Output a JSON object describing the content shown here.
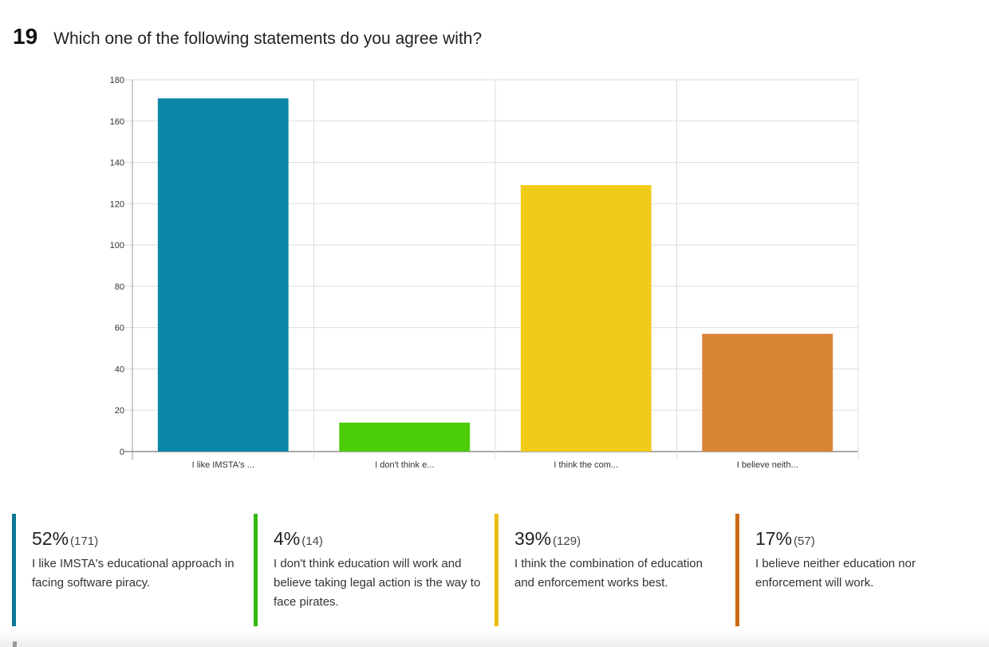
{
  "question": {
    "number": "19",
    "text": "Which one of the following statements do you agree with?"
  },
  "chart_data": {
    "type": "bar",
    "categories": [
      "I like IMSTA's ...",
      "I don't think e...",
      "I think the com...",
      "I believe neith..."
    ],
    "values": [
      171,
      14,
      129,
      57
    ],
    "colors": [
      "#0a87a6",
      "#4ccd0a",
      "#f1cb19",
      "#d88435"
    ],
    "ylim": [
      0,
      180
    ],
    "yticks": [
      0,
      20,
      40,
      60,
      80,
      100,
      120,
      140,
      160,
      180
    ],
    "grid": true
  },
  "legend": [
    {
      "percent": "52%",
      "count": "(171)",
      "text": "I like IMSTA's educational approach in facing software piracy.",
      "color": "#0f7895"
    },
    {
      "percent": "4%",
      "count": "(14)",
      "text": "I don't think education will work and believe taking legal action is the way to face pirates.",
      "color": "#34b90d"
    },
    {
      "percent": "39%",
      "count": "(129)",
      "text": "I think the combination of education and enforcement works best.",
      "color": "#e8bd12"
    },
    {
      "percent": "17%",
      "count": "(57)",
      "text": "I believe neither education nor enforcement will work.",
      "color": "#c96a14"
    }
  ]
}
